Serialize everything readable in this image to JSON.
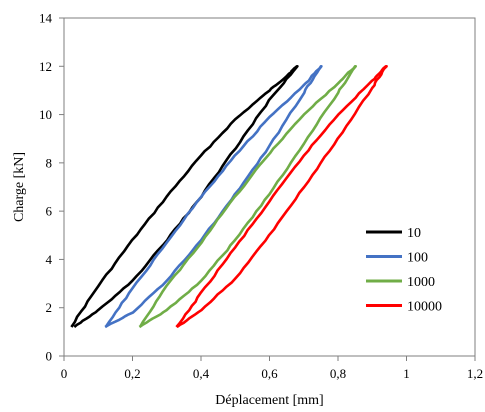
{
  "chart_data": {
    "type": "line",
    "title": "",
    "xlabel": "Déplacement [mm]",
    "ylabel": "Charge [kN]",
    "xlim": [
      0,
      1.2
    ],
    "ylim": [
      0,
      14
    ],
    "xticks": [
      0,
      0.2,
      0.4,
      0.6,
      0.8,
      1,
      1.2
    ],
    "xtick_labels": [
      "0",
      "0,2",
      "0,4",
      "0,6",
      "0,8",
      "1",
      "1,2"
    ],
    "yticks": [
      0,
      2,
      4,
      6,
      8,
      10,
      12,
      14
    ],
    "ytick_labels": [
      "0",
      "2",
      "4",
      "6",
      "8",
      "10",
      "12",
      "14"
    ],
    "grid": false,
    "legend_position": "right",
    "series": [
      {
        "name": "10",
        "color": "#000000",
        "loading": [
          [
            0.02,
            1.2
          ],
          [
            0.1,
            2.9
          ],
          [
            0.2,
            4.8
          ],
          [
            0.3,
            6.6
          ],
          [
            0.4,
            8.3
          ],
          [
            0.5,
            9.8
          ],
          [
            0.6,
            11.0
          ],
          [
            0.65,
            11.6
          ],
          [
            0.68,
            12.0
          ]
        ],
        "unloading": [
          [
            0.68,
            12.0
          ],
          [
            0.6,
            10.6
          ],
          [
            0.5,
            8.6
          ],
          [
            0.4,
            6.6
          ],
          [
            0.3,
            4.8
          ],
          [
            0.2,
            3.1
          ],
          [
            0.1,
            1.9
          ],
          [
            0.03,
            1.2
          ]
        ]
      },
      {
        "name": "100",
        "color": "#4472c4",
        "loading": [
          [
            0.12,
            1.2
          ],
          [
            0.2,
            2.8
          ],
          [
            0.3,
            4.7
          ],
          [
            0.4,
            6.6
          ],
          [
            0.5,
            8.3
          ],
          [
            0.6,
            9.9
          ],
          [
            0.7,
            11.2
          ],
          [
            0.75,
            12.0
          ]
        ],
        "unloading": [
          [
            0.75,
            12.0
          ],
          [
            0.7,
            10.9
          ],
          [
            0.6,
            8.7
          ],
          [
            0.5,
            6.7
          ],
          [
            0.4,
            4.8
          ],
          [
            0.3,
            3.1
          ],
          [
            0.2,
            1.8
          ],
          [
            0.12,
            1.2
          ]
        ]
      },
      {
        "name": "1000",
        "color": "#70ad47",
        "loading": [
          [
            0.22,
            1.2
          ],
          [
            0.3,
            2.9
          ],
          [
            0.4,
            4.7
          ],
          [
            0.5,
            6.6
          ],
          [
            0.6,
            8.4
          ],
          [
            0.7,
            10.0
          ],
          [
            0.8,
            11.3
          ],
          [
            0.85,
            12.0
          ]
        ],
        "unloading": [
          [
            0.85,
            12.0
          ],
          [
            0.8,
            10.9
          ],
          [
            0.7,
            8.8
          ],
          [
            0.6,
            6.7
          ],
          [
            0.5,
            4.8
          ],
          [
            0.4,
            3.1
          ],
          [
            0.3,
            1.9
          ],
          [
            0.22,
            1.2
          ]
        ]
      },
      {
        "name": "10000",
        "color": "#ff0000",
        "loading": [
          [
            0.33,
            1.2
          ],
          [
            0.4,
            2.6
          ],
          [
            0.5,
            4.5
          ],
          [
            0.6,
            6.4
          ],
          [
            0.7,
            8.3
          ],
          [
            0.8,
            10.0
          ],
          [
            0.9,
            11.4
          ],
          [
            0.94,
            12.0
          ]
        ],
        "unloading": [
          [
            0.94,
            12.0
          ],
          [
            0.9,
            11.1
          ],
          [
            0.8,
            9.0
          ],
          [
            0.7,
            7.0
          ],
          [
            0.6,
            5.0
          ],
          [
            0.5,
            3.2
          ],
          [
            0.4,
            1.9
          ],
          [
            0.33,
            1.2
          ]
        ]
      }
    ]
  }
}
